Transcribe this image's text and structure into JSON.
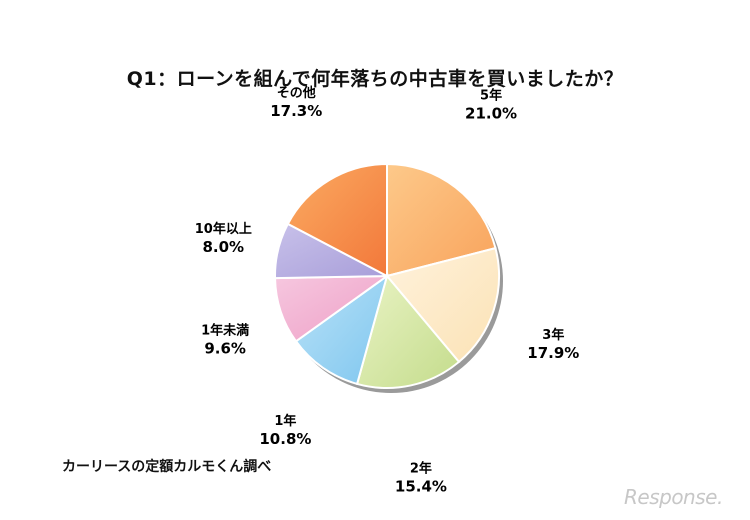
{
  "title": "Q1：ローンを組んで何年落ちの中古車を買いましたか？",
  "source": "カーリースの定額カルモくん調べ",
  "watermark": "Response.",
  "chart_data": {
    "type": "pie",
    "start": "12 o'clock",
    "direction": "clockwise",
    "slices": [
      {
        "label": "5年",
        "value": 21.0,
        "value_label": "21.0%",
        "color_from": "#fdc98a",
        "color_to": "#f8a35c"
      },
      {
        "label": "3年",
        "value": 17.9,
        "value_label": "17.9%",
        "color_from": "#fff2dc",
        "color_to": "#fbe2b5"
      },
      {
        "label": "2年",
        "value": 15.4,
        "value_label": "15.4%",
        "color_from": "#e9f3c4",
        "color_to": "#c4dc8c"
      },
      {
        "label": "1年",
        "value": 10.8,
        "value_label": "10.8%",
        "color_from": "#b9e2f7",
        "color_to": "#7fc6ef"
      },
      {
        "label": "1年未満",
        "value": 9.6,
        "value_label": "9.6%",
        "color_from": "#f6c7df",
        "color_to": "#ee9fc6"
      },
      {
        "label": "10年以上",
        "value": 8.0,
        "value_label": "8.0%",
        "color_from": "#c8c1ea",
        "color_to": "#a89ed9"
      },
      {
        "label": "その他",
        "value": 17.3,
        "value_label": "17.3%",
        "color_from": "#fbab62",
        "color_to": "#f2783a"
      }
    ]
  }
}
